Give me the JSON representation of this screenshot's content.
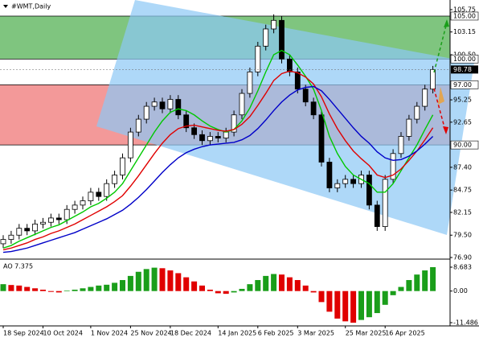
{
  "chart_data": [
    {
      "type": "candlestick",
      "title": "#WMT,Daily",
      "categories": [
        "18 Sep 2024",
        null,
        null,
        null,
        null,
        "10 Oct 2024",
        null,
        null,
        null,
        null,
        null,
        "1 Nov 2024",
        null,
        null,
        null,
        null,
        "25 Nov 2024",
        null,
        null,
        null,
        null,
        "18 Dec 2024",
        null,
        null,
        null,
        null,
        null,
        "14 Jan 2025",
        null,
        null,
        null,
        null,
        "6 Feb 2025",
        null,
        null,
        null,
        null,
        "3 Mar 2025",
        null,
        null,
        null,
        null,
        null,
        "25 Mar 2025",
        null,
        null,
        null,
        null,
        "16 Apr 2025",
        null,
        null,
        null,
        null,
        null,
        null
      ],
      "open": [
        78.5,
        79.0,
        79.5,
        80.3,
        80.0,
        80.8,
        81.0,
        81.5,
        81.3,
        82.5,
        83.0,
        83.5,
        84.5,
        84.0,
        85.5,
        86.5,
        88.5,
        91.5,
        93.0,
        94.5,
        95.0,
        94.2,
        95.3,
        93.5,
        92.0,
        91.2,
        90.5,
        91.0,
        90.8,
        91.5,
        93.5,
        96.0,
        98.5,
        101.5,
        103.5,
        104.5,
        100.0,
        98.5,
        96.5,
        95.0,
        93.5,
        88.0,
        85.0,
        85.5,
        86.0,
        85.5,
        86.5,
        83.0,
        80.5,
        86.0,
        89.0,
        91.0,
        93.0,
        94.5,
        96.5
      ],
      "high": [
        79.5,
        80.0,
        80.8,
        80.8,
        81.3,
        81.5,
        82.0,
        82.0,
        83.0,
        83.5,
        84.0,
        85.0,
        85.0,
        86.0,
        87.0,
        89.0,
        92.0,
        93.5,
        95.0,
        95.5,
        95.5,
        95.8,
        95.8,
        94.0,
        92.5,
        91.7,
        91.5,
        91.5,
        92.0,
        94.0,
        96.5,
        99.0,
        102.0,
        104.0,
        105.2,
        105.0,
        100.5,
        99.0,
        97.0,
        95.5,
        94.0,
        88.5,
        86.0,
        86.5,
        86.5,
        87.0,
        87.0,
        83.5,
        86.5,
        89.5,
        91.5,
        93.5,
        95.0,
        97.0,
        99.2
      ],
      "low": [
        78.0,
        78.5,
        79.0,
        79.5,
        79.5,
        80.3,
        80.5,
        80.8,
        80.8,
        82.0,
        82.5,
        83.0,
        83.5,
        83.5,
        85.0,
        86.0,
        88.0,
        91.0,
        92.5,
        94.0,
        93.7,
        93.7,
        93.0,
        91.5,
        90.7,
        90.0,
        90.0,
        90.3,
        90.3,
        91.0,
        93.0,
        95.5,
        98.0,
        101.0,
        103.0,
        99.5,
        98.0,
        96.0,
        94.5,
        93.0,
        87.5,
        84.5,
        84.5,
        85.0,
        85.0,
        85.0,
        82.5,
        80.0,
        80.0,
        85.5,
        88.5,
        90.5,
        92.5,
        94.0,
        96.0
      ],
      "close": [
        79.0,
        79.5,
        80.3,
        80.0,
        80.8,
        81.0,
        81.5,
        81.3,
        82.5,
        83.0,
        83.5,
        84.5,
        84.0,
        85.5,
        86.5,
        88.5,
        91.5,
        93.0,
        94.5,
        95.0,
        94.2,
        95.3,
        93.5,
        92.0,
        91.2,
        90.5,
        91.0,
        90.8,
        91.5,
        93.5,
        96.0,
        98.5,
        101.5,
        103.5,
        104.5,
        100.0,
        98.5,
        96.5,
        95.0,
        93.5,
        88.0,
        85.0,
        85.5,
        86.0,
        85.5,
        86.5,
        83.0,
        80.5,
        86.0,
        89.0,
        91.0,
        93.0,
        94.5,
        96.5,
        98.78
      ],
      "up_color": "#ffffff",
      "down_color": "#000000",
      "series": [
        {
          "color": "#00c800",
          "values": [
            78.0,
            78.3,
            78.8,
            79.2,
            79.6,
            80.0,
            80.4,
            80.7,
            81.2,
            81.7,
            82.2,
            82.8,
            83.2,
            83.8,
            84.5,
            85.5,
            87.0,
            88.5,
            90.0,
            91.5,
            92.8,
            93.8,
            94.2,
            94.0,
            93.5,
            92.8,
            92.2,
            91.8,
            91.5,
            91.8,
            92.8,
            94.3,
            96.3,
            98.5,
            100.5,
            101.0,
            100.5,
            99.3,
            98.0,
            96.5,
            94.0,
            91.0,
            89.0,
            87.5,
            86.5,
            86.0,
            85.5,
            84.5,
            84.5,
            85.5,
            87.0,
            88.5,
            90.0,
            91.8,
            93.5
          ]
        },
        {
          "color": "#e00000",
          "values": [
            77.8,
            78.0,
            78.3,
            78.6,
            79.0,
            79.3,
            79.7,
            80.0,
            80.4,
            80.8,
            81.3,
            81.8,
            82.3,
            82.8,
            83.4,
            84.1,
            85.2,
            86.4,
            87.7,
            89.0,
            90.2,
            91.2,
            91.9,
            92.2,
            92.3,
            92.1,
            91.9,
            91.7,
            91.6,
            91.8,
            92.4,
            93.3,
            94.6,
            96.0,
            97.5,
            98.3,
            98.6,
            98.4,
            97.9,
            97.1,
            95.6,
            93.6,
            91.9,
            90.5,
            89.3,
            88.4,
            87.6,
            86.5,
            86.2,
            86.5,
            87.2,
            88.2,
            89.3,
            90.6,
            92.0
          ]
        },
        {
          "color": "#0000c8",
          "values": [
            77.5,
            77.6,
            77.8,
            78.0,
            78.3,
            78.6,
            78.9,
            79.2,
            79.5,
            79.8,
            80.2,
            80.6,
            81.0,
            81.4,
            81.9,
            82.4,
            83.1,
            83.9,
            84.8,
            85.8,
            86.8,
            87.7,
            88.5,
            89.1,
            89.5,
            89.8,
            90.0,
            90.1,
            90.2,
            90.3,
            90.6,
            91.1,
            91.9,
            92.9,
            94.0,
            95.0,
            95.8,
            96.4,
            96.7,
            96.8,
            96.3,
            95.3,
            94.2,
            93.1,
            92.0,
            91.0,
            90.2,
            89.2,
            88.5,
            88.2,
            88.3,
            88.7,
            89.3,
            90.1,
            91.0
          ]
        }
      ],
      "ylim": [
        76.9,
        106.87
      ],
      "yticks": [
        105.75,
        103.15,
        {
          "value": 100.5,
          "label": "100.50"
        },
        95.25,
        92.65,
        {
          "value": 87.4,
          "label": "87.40"
        },
        84.75,
        82.15,
        {
          "value": 79.5,
          "label": "79.50"
        },
        {
          "value": 76.9,
          "label": "76.90"
        }
      ],
      "levels": [
        {
          "value": 105,
          "label": "105.00"
        },
        {
          "value": 100,
          "label": "100.00"
        },
        {
          "value": 97,
          "label": "97.00"
        },
        {
          "value": 90,
          "label": "90.00"
        }
      ],
      "last_price": {
        "value": 98.78,
        "label": "98.78"
      },
      "zones": [
        {
          "from": 100,
          "to": 105,
          "color": "#5fb65f"
        },
        {
          "from": 90,
          "to": 97,
          "color": "#f08080"
        }
      ]
    },
    {
      "type": "bar",
      "title": "AO 7.375",
      "values": [
        2.5,
        2.2,
        2.0,
        1.5,
        1.0,
        0.5,
        -0.3,
        -0.5,
        0.2,
        0.5,
        1.0,
        1.5,
        2.0,
        2.3,
        3.0,
        4.0,
        5.5,
        7.0,
        8.0,
        8.5,
        8.3,
        7.5,
        6.5,
        5.0,
        3.5,
        2.0,
        0.5,
        -0.8,
        -1.0,
        -0.5,
        0.8,
        2.5,
        4.0,
        5.5,
        6.2,
        6.0,
        5.0,
        4.0,
        2.0,
        -0.5,
        -4.0,
        -7.5,
        -10.0,
        -11.0,
        -11.486,
        -10.5,
        -9.5,
        -8.0,
        -5.0,
        -1.5,
        1.5,
        4.0,
        6.0,
        7.5,
        8.683
      ],
      "up_color": "#1a9e1a",
      "down_color": "#e00000",
      "ylim": [
        -12.66,
        10.73
      ],
      "yticks": [
        8.683,
        {
          "value": 0,
          "label": "0.00"
        },
        -11.486
      ]
    }
  ]
}
